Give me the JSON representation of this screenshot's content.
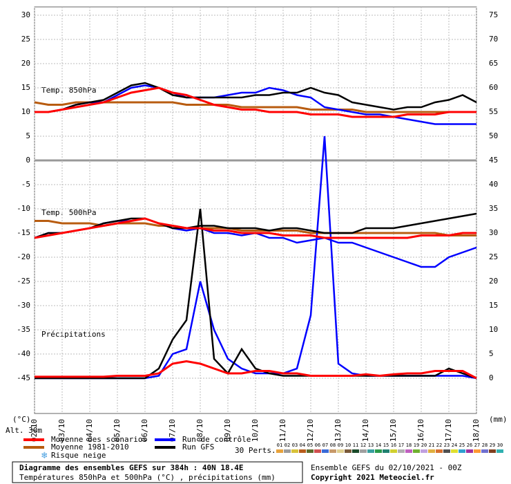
{
  "chart_data": {
    "type": "line",
    "title": "Diagramme des ensembles GEFS sur 384h : 40N 18.4E",
    "subtitle": "Températures 850hPa et 500hPa (°C) , précipitations (mm)",
    "run_label": "Ensemble GEFS du 02/10/2021 - 00Z",
    "copyright": "Copyright 2021 Meteociel.fr",
    "y_label": "(°C)",
    "y2_label": "(mm)",
    "altitude": "Alt. 30m",
    "annotations": [
      "Temp. 850hPa",
      "Temp. 500hPa",
      "Précipitations"
    ],
    "snow_label": "Risque neige",
    "perts_label": "30 Perts.",
    "perts": [
      {
        "name": "01",
        "color": "#e8a33c"
      },
      {
        "name": "02",
        "color": "#9c9c9c"
      },
      {
        "name": "03",
        "color": "#d8c23a"
      },
      {
        "name": "04",
        "color": "#b85c1c"
      },
      {
        "name": "05",
        "color": "#5a6b2a"
      },
      {
        "name": "06",
        "color": "#d05050"
      },
      {
        "name": "07",
        "color": "#3a6bd8"
      },
      {
        "name": "08",
        "color": "#c89a6a"
      },
      {
        "name": "09",
        "color": "#e0d090"
      },
      {
        "name": "10",
        "color": "#7a5a3a"
      },
      {
        "name": "11",
        "color": "#1a4a2a"
      },
      {
        "name": "12",
        "color": "#a0a0a0"
      },
      {
        "name": "13",
        "color": "#3aa0a0"
      },
      {
        "name": "14",
        "color": "#2a9a4a"
      },
      {
        "name": "15",
        "color": "#208070"
      },
      {
        "name": "16",
        "color": "#d0d030"
      },
      {
        "name": "17",
        "color": "#b0b0b0"
      },
      {
        "name": "18",
        "color": "#c060c0"
      },
      {
        "name": "19",
        "color": "#70b030"
      },
      {
        "name": "20",
        "color": "#c0a0e0"
      },
      {
        "name": "21",
        "color": "#e0b040"
      },
      {
        "name": "22",
        "color": "#d87030"
      },
      {
        "name": "23",
        "color": "#505050"
      },
      {
        "name": "24",
        "color": "#e0e030"
      },
      {
        "name": "25",
        "color": "#30a0d0"
      },
      {
        "name": "26",
        "color": "#a030a0"
      },
      {
        "name": "27",
        "color": "#ff9933"
      },
      {
        "name": "28",
        "color": "#7070d0"
      },
      {
        "name": "29",
        "color": "#804020"
      },
      {
        "name": "30",
        "color": "#30b0b0"
      }
    ],
    "x": [
      0,
      12,
      24,
      36,
      48,
      60,
      72,
      84,
      96,
      108,
      120,
      132,
      144,
      156,
      168,
      180,
      192,
      204,
      216,
      228,
      240,
      252,
      264,
      276,
      288,
      300,
      312,
      324,
      336,
      348,
      360,
      372,
      384
    ],
    "xlim": [
      0,
      384
    ],
    "xticks": [
      {
        "value": 0,
        "label": "02/10"
      },
      {
        "value": 24,
        "label": "03/10"
      },
      {
        "value": 48,
        "label": "04/10"
      },
      {
        "value": 72,
        "label": "05/10"
      },
      {
        "value": 96,
        "label": "06/10"
      },
      {
        "value": 120,
        "label": "07/10"
      },
      {
        "value": 144,
        "label": "08/10"
      },
      {
        "value": 168,
        "label": "09/10"
      },
      {
        "value": 192,
        "label": "10/10"
      },
      {
        "value": 216,
        "label": "11/10"
      },
      {
        "value": 240,
        "label": "12/10"
      },
      {
        "value": 264,
        "label": "13/10"
      },
      {
        "value": 288,
        "label": "14/10"
      },
      {
        "value": 312,
        "label": "15/10"
      },
      {
        "value": 336,
        "label": "16/10"
      },
      {
        "value": 360,
        "label": "17/10"
      },
      {
        "value": 384,
        "label": "18/10"
      }
    ],
    "ylim": [
      -52,
      31
    ],
    "yticks": [
      30,
      25,
      20,
      15,
      10,
      5,
      0,
      -5,
      -10,
      -15,
      -20,
      -25,
      -30,
      -35,
      -40,
      -45
    ],
    "y2lim": [
      -7,
      76
    ],
    "y2ticks": [
      75,
      70,
      65,
      60,
      55,
      50,
      45,
      40,
      35,
      30,
      25,
      20,
      15,
      10,
      5,
      0
    ],
    "grid": true,
    "series": [
      {
        "name": "Moyenne des scénarios",
        "color": "#ff0000",
        "t850": [
          10,
          10,
          10.5,
          11,
          11.5,
          12,
          13,
          14,
          14.5,
          15,
          14,
          13.5,
          12.5,
          11.5,
          11,
          10.5,
          10.5,
          10,
          10,
          10,
          9.5,
          9.5,
          9.5,
          9,
          9,
          9,
          9,
          9.5,
          9.5,
          9.5,
          10,
          10,
          10
        ],
        "t500": [
          -16,
          -15.5,
          -15,
          -14.5,
          -14,
          -13.5,
          -13,
          -12.5,
          -12,
          -13,
          -13.5,
          -14,
          -14,
          -14.5,
          -14.5,
          -15,
          -15,
          -15,
          -15.5,
          -15.5,
          -15.5,
          -16,
          -16,
          -16,
          -16,
          -16,
          -16,
          -16,
          -15.5,
          -15.5,
          -15.5,
          -15,
          -15
        ],
        "precip": [
          0.3,
          0.3,
          0.3,
          0.3,
          0.3,
          0.3,
          0.5,
          0.5,
          0.5,
          1,
          3,
          3.5,
          3,
          2,
          1,
          1,
          1.5,
          1.5,
          1,
          1,
          0.5,
          0.5,
          0.5,
          0.5,
          0.8,
          0.5,
          0.8,
          1,
          1,
          1.5,
          1.5,
          1.5,
          0
        ]
      },
      {
        "name": "Moyenne 1981-2010",
        "color": "#b85c10",
        "t850": [
          12,
          11.5,
          11.5,
          12,
          12,
          12,
          12,
          12,
          12,
          12,
          12,
          11.5,
          11.5,
          11.5,
          11.5,
          11,
          11,
          11,
          11,
          11,
          10.5,
          10.5,
          10.5,
          10.5,
          10,
          10,
          10,
          10,
          10,
          10,
          10,
          10,
          10
        ],
        "t500": [
          -12.5,
          -12.5,
          -13,
          -13,
          -13,
          -13.5,
          -13,
          -13,
          -13,
          -13.5,
          -13.5,
          -14,
          -14,
          -14,
          -14,
          -14.5,
          -14.5,
          -14.5,
          -14.5,
          -14.5,
          -15,
          -15,
          -15,
          -15,
          -15,
          -15,
          -15,
          -15,
          -15,
          -15,
          -15.5,
          -15.5,
          -15.5
        ]
      },
      {
        "name": "Run de contrôle",
        "color": "#0000ff",
        "t850": [
          10,
          10,
          10.5,
          11.5,
          12,
          12,
          13.5,
          15,
          15.5,
          15,
          14,
          13,
          13,
          13,
          13.5,
          14,
          14,
          15,
          14.5,
          13.5,
          13,
          11,
          10.5,
          10,
          9.5,
          9.5,
          9,
          8.5,
          8,
          7.5,
          7.5,
          7.5,
          7.5
        ],
        "t500": [
          -16,
          -15,
          -15,
          -14.5,
          -14,
          -13,
          -12.5,
          -12.5,
          -12,
          -13,
          -14,
          -14.5,
          -14,
          -15,
          -15,
          -15.5,
          -15,
          -16,
          -16,
          -17,
          -16.5,
          -16,
          -17,
          -17,
          -18,
          -19,
          -20,
          -21,
          -22,
          -22,
          -20,
          -19,
          -18
        ],
        "precip": [
          0,
          0,
          0,
          0,
          0,
          0,
          0,
          0,
          0,
          0.5,
          5,
          6,
          20,
          10,
          4,
          2,
          1,
          1,
          1,
          2,
          13,
          50,
          3,
          1,
          0.5,
          0.5,
          0.5,
          0.5,
          0.5,
          0.5,
          0.5,
          0.5,
          0
        ]
      },
      {
        "name": "Run GFS",
        "color": "#000000",
        "t850": [
          10,
          10,
          10.5,
          11.5,
          12,
          12.5,
          14,
          15.5,
          16,
          15,
          13.5,
          13,
          13,
          13,
          13,
          13,
          13.5,
          13.5,
          14,
          14,
          15,
          14,
          13.5,
          12,
          11.5,
          11,
          10.5,
          11,
          11,
          12,
          12.5,
          13.5,
          12
        ],
        "t500": [
          -16,
          -15,
          -15,
          -14.5,
          -14,
          -13,
          -12.5,
          -12,
          -12,
          -13,
          -14,
          -14,
          -13.5,
          -13.5,
          -14,
          -14,
          -14,
          -14.5,
          -14,
          -14,
          -14.5,
          -15,
          -15,
          -15,
          -14,
          -14,
          -14,
          -13.5,
          -13,
          -12.5,
          -12,
          -11.5,
          -11
        ],
        "precip": [
          0,
          0,
          0,
          0,
          0,
          0,
          0,
          0,
          0,
          2,
          8,
          12,
          35,
          4,
          1,
          6,
          2,
          1,
          0.5,
          0.5,
          0.5,
          0.5,
          0.5,
          0.5,
          0.5,
          0.5,
          0.5,
          0.5,
          0.5,
          0.5,
          2,
          1,
          0
        ]
      }
    ]
  }
}
